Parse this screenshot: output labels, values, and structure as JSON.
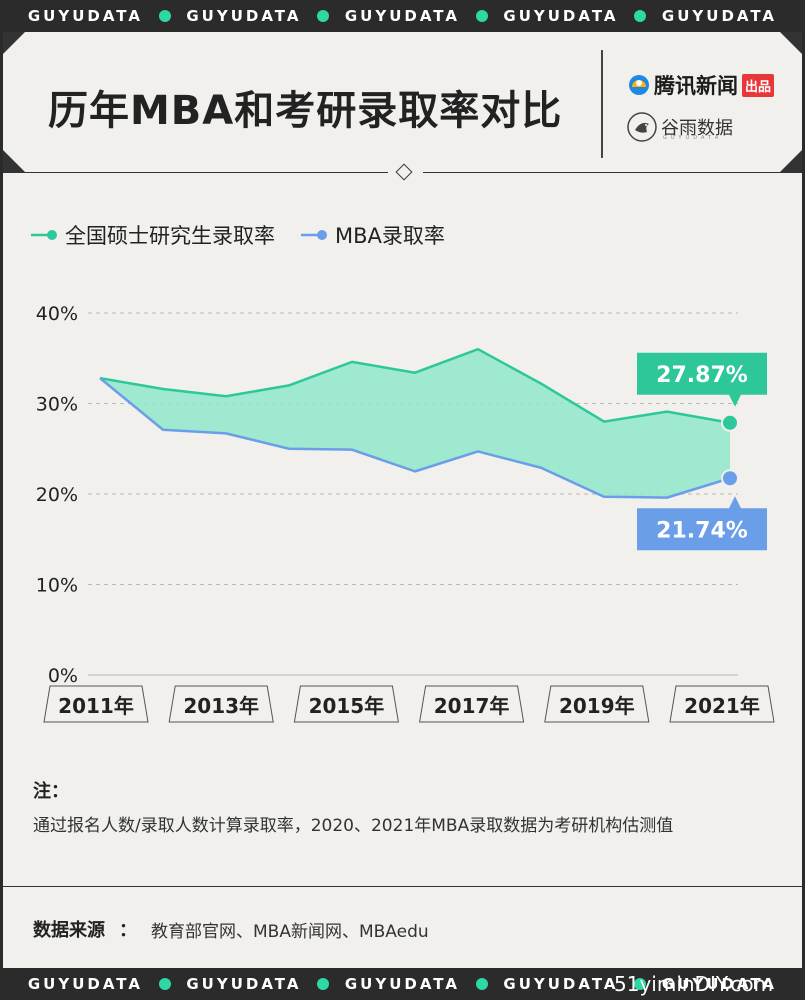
{
  "band": {
    "top": [
      "GUYUDATA",
      "GUYUDATA",
      "GUYUDATA",
      "GUYUDATA",
      "GUYUDATA"
    ],
    "bottom": [
      "GUYUDATA",
      "GUYUDATA",
      "GUYUDATA",
      "GUYUDATA",
      "GUYUDATA"
    ],
    "dot_color": "#2ed8a4"
  },
  "header": {
    "title": "历年MBA和考研录取率对比",
    "brand_tencent": "腾讯新闻",
    "brand_chupin": "出品",
    "brand_guyu": "谷雨数据",
    "brand_guyu_sub": "GUYUDATA"
  },
  "legend": [
    {
      "label": "全国硕士研究生录取率",
      "color": "#2ec79a"
    },
    {
      "label": "MBA录取率",
      "color": "#6a9ee8"
    }
  ],
  "chart_data": {
    "type": "area",
    "x": [
      2011,
      2012,
      2013,
      2014,
      2015,
      2016,
      2017,
      2018,
      2019,
      2020,
      2021
    ],
    "x_tick_labels": [
      "2011年",
      "2013年",
      "2015年",
      "2017年",
      "2019年",
      "2021年"
    ],
    "y_tick_labels": [
      "40%",
      "30%",
      "20%",
      "10%",
      "0%"
    ],
    "ylim": [
      0,
      40
    ],
    "series": [
      {
        "name": "全国硕士研究生录取率",
        "color": "#2ec79a",
        "values": [
          32.8,
          31.6,
          30.8,
          32.0,
          34.6,
          33.4,
          36.0,
          32.2,
          28.0,
          29.1,
          27.87
        ]
      },
      {
        "name": "MBA录取率",
        "color": "#6a9ee8",
        "values": [
          32.8,
          27.1,
          26.7,
          25.0,
          24.9,
          22.5,
          24.7,
          22.9,
          19.7,
          19.6,
          21.74
        ]
      }
    ],
    "fill_color": "#8fe8cb",
    "annotations": [
      {
        "series": 0,
        "text": "27.87%",
        "color": "#2ec79a"
      },
      {
        "series": 1,
        "text": "21.74%",
        "color": "#6a9ee8"
      }
    ]
  },
  "notes": {
    "title": "注：",
    "body": "通过报名人数/录取人数计算录取率，2020、2021年MBA录取数据为考研机构估测值"
  },
  "source": {
    "title": "数据来源",
    "colon": "：",
    "body": "教育部官网、MBA新闻网、MBAedu"
  },
  "watermark": "51yiminDIY.com"
}
